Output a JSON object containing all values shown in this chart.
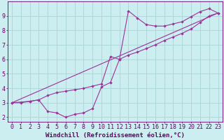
{
  "xlabel": "Windchill (Refroidissement éolien,°C)",
  "xlim": [
    -0.5,
    23.5
  ],
  "ylim": [
    1.7,
    10.0
  ],
  "bg_color": "#cceef0",
  "grid_color": "#aad4d8",
  "line_color": "#993399",
  "markersize": 2.2,
  "line1_x": [
    0,
    1,
    2,
    3,
    4,
    5,
    6,
    7,
    8,
    9,
    10,
    11,
    12,
    13,
    14,
    15,
    16,
    17,
    18,
    19,
    20,
    21,
    22,
    23
  ],
  "line1_y": [
    3.0,
    3.0,
    3.1,
    3.2,
    2.4,
    2.3,
    2.0,
    2.2,
    2.3,
    2.6,
    4.1,
    4.4,
    6.0,
    9.35,
    8.85,
    8.4,
    8.3,
    8.3,
    8.45,
    8.6,
    8.95,
    9.3,
    9.5,
    9.2
  ],
  "line2_x": [
    0,
    2,
    3,
    4,
    5,
    6,
    7,
    8,
    9,
    10,
    11,
    12,
    13,
    14,
    15,
    16,
    17,
    18,
    19,
    20,
    21,
    22,
    23
  ],
  "line2_y": [
    3.0,
    3.1,
    3.2,
    3.5,
    3.7,
    3.8,
    3.9,
    4.0,
    4.15,
    4.3,
    6.2,
    6.0,
    6.3,
    6.5,
    6.75,
    7.0,
    7.3,
    7.55,
    7.8,
    8.1,
    8.55,
    9.0,
    9.2
  ],
  "line3_x": [
    0,
    23
  ],
  "line3_y": [
    3.0,
    9.2
  ],
  "xlabel_fontsize": 6.5,
  "tick_fontsize": 6,
  "text_color": "#660066"
}
